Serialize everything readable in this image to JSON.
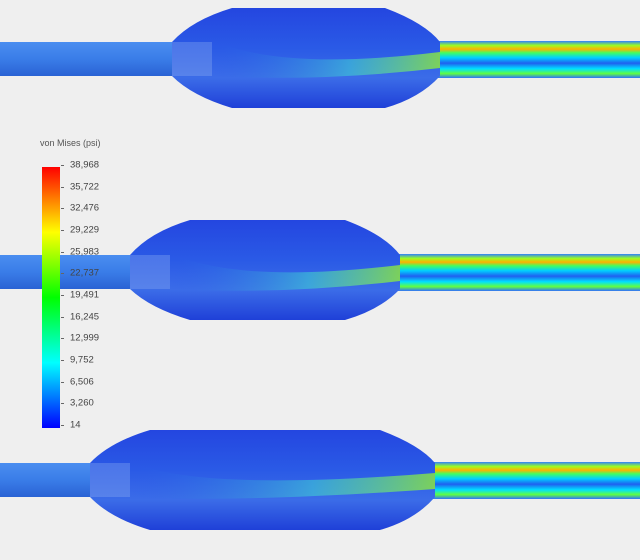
{
  "legend": {
    "title": "von Mises (psi)",
    "ticks": [
      "38,968",
      "35,722",
      "32,476",
      "29,229",
      "25,983",
      "22,737",
      "19,491",
      "16,245",
      "12,999",
      "9,752",
      "6,506",
      "3,260",
      "14"
    ],
    "min": 14,
    "max": 38968,
    "colormap": [
      "#0000ff",
      "#0080ff",
      "#00ffff",
      "#00ff80",
      "#00ff00",
      "#80ff00",
      "#ffff00",
      "#ff8000",
      "#ff0000"
    ]
  },
  "colors": {
    "tube": "#3a7de8",
    "body": "#2a55e0",
    "background": "#efefef"
  }
}
